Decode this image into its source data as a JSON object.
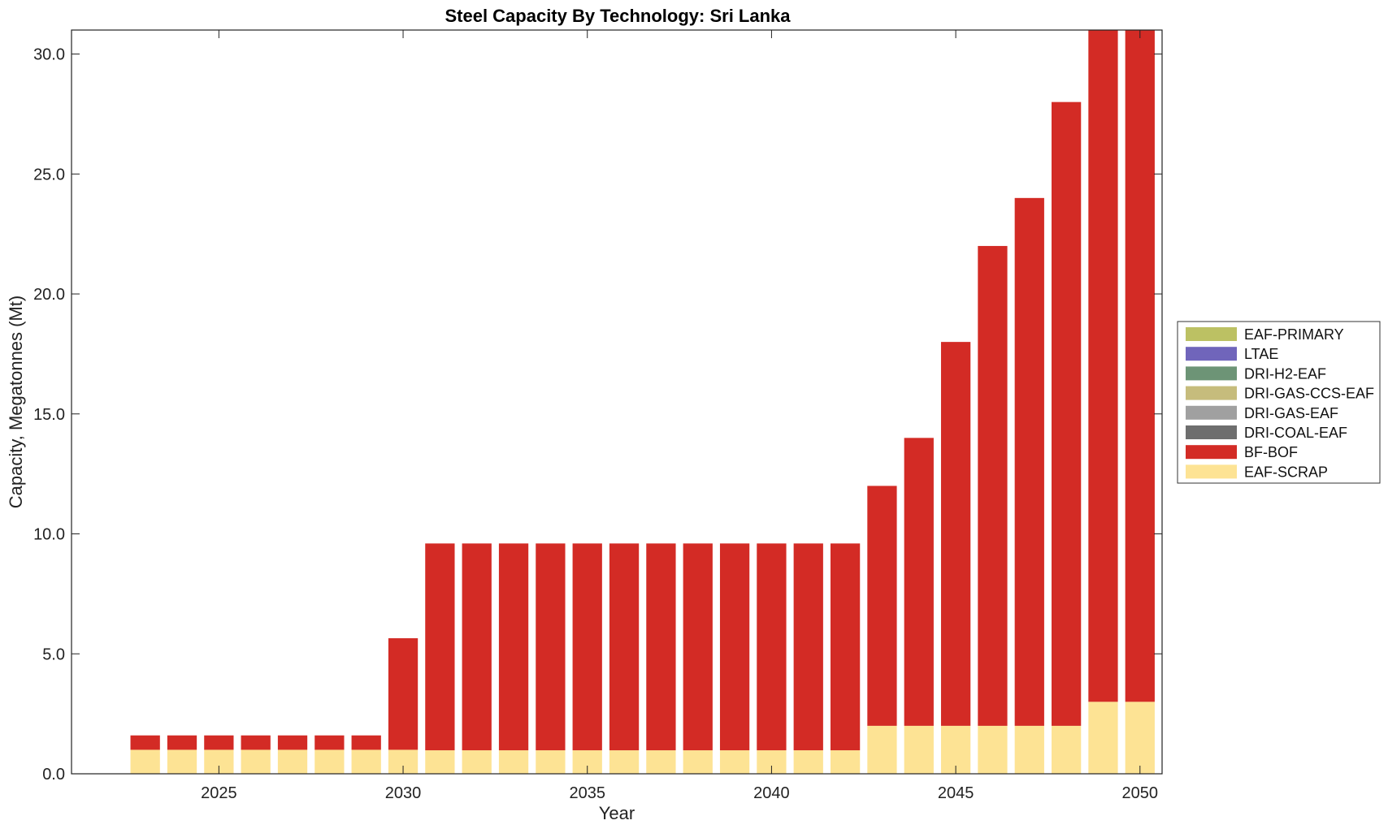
{
  "chart_data": {
    "type": "bar",
    "stacked": true,
    "title": "Steel Capacity By Technology: Sri Lanka",
    "xlabel": "Year",
    "ylabel": "Capacity, Megatonnes (Mt)",
    "xlim": [
      2021.0,
      2050.6
    ],
    "ylim": [
      0,
      31
    ],
    "yticks": [
      0,
      5,
      10,
      15,
      20,
      25,
      30
    ],
    "ytick_labels": [
      "0.0",
      "5.0",
      "10.0",
      "15.0",
      "20.0",
      "25.0",
      "30.0"
    ],
    "xticks": [
      2025,
      2030,
      2035,
      2040,
      2045,
      2050
    ],
    "xtick_labels": [
      "2025",
      "2030",
      "2035",
      "2040",
      "2045",
      "2050"
    ],
    "grid": false,
    "legend_position": "right",
    "categories": [
      2023,
      2024,
      2025,
      2026,
      2027,
      2028,
      2029,
      2030,
      2031,
      2032,
      2033,
      2034,
      2035,
      2036,
      2037,
      2038,
      2039,
      2040,
      2041,
      2042,
      2043,
      2044,
      2045,
      2046,
      2047,
      2048,
      2049,
      2050
    ],
    "series": [
      {
        "name": "EAF-SCRAP",
        "color": "#fde394",
        "values": [
          1.0,
          1.0,
          1.0,
          1.0,
          1.0,
          1.0,
          1.0,
          1.0,
          0.98,
          0.98,
          0.98,
          0.98,
          0.98,
          0.98,
          0.98,
          0.98,
          0.98,
          0.98,
          0.98,
          0.98,
          2.0,
          2.0,
          2.0,
          2.0,
          2.0,
          2.0,
          3.0,
          3.0
        ]
      },
      {
        "name": "BF-BOF",
        "color": "#d32b25",
        "values": [
          0.6,
          0.6,
          0.6,
          0.6,
          0.6,
          0.6,
          0.6,
          4.65,
          8.62,
          8.62,
          8.62,
          8.62,
          8.62,
          8.62,
          8.62,
          8.62,
          8.62,
          8.62,
          8.62,
          8.62,
          10.0,
          12.0,
          16.0,
          20.0,
          22.0,
          26.0,
          28.0,
          28.0
        ]
      },
      {
        "name": "DRI-COAL-EAF",
        "color": "#6e6e6e",
        "values": [
          0,
          0,
          0,
          0,
          0,
          0,
          0,
          0,
          0,
          0,
          0,
          0,
          0,
          0,
          0,
          0,
          0,
          0,
          0,
          0,
          0,
          0,
          0,
          0,
          0,
          0,
          0,
          0
        ]
      },
      {
        "name": "DRI-GAS-EAF",
        "color": "#a0a0a0",
        "values": [
          0,
          0,
          0,
          0,
          0,
          0,
          0,
          0,
          0,
          0,
          0,
          0,
          0,
          0,
          0,
          0,
          0,
          0,
          0,
          0,
          0,
          0,
          0,
          0,
          0,
          0,
          0,
          0
        ]
      },
      {
        "name": "DRI-GAS-CCS-EAF",
        "color": "#c6bc7c",
        "values": [
          0,
          0,
          0,
          0,
          0,
          0,
          0,
          0,
          0,
          0,
          0,
          0,
          0,
          0,
          0,
          0,
          0,
          0,
          0,
          0,
          0,
          0,
          0,
          0,
          0,
          0,
          0,
          0
        ]
      },
      {
        "name": "DRI-H2-EAF",
        "color": "#6d9476",
        "values": [
          0,
          0,
          0,
          0,
          0,
          0,
          0,
          0,
          0,
          0,
          0,
          0,
          0,
          0,
          0,
          0,
          0,
          0,
          0,
          0,
          0,
          0,
          0,
          0,
          0,
          0,
          0,
          0
        ]
      },
      {
        "name": "LTAE",
        "color": "#7065bb",
        "values": [
          0,
          0,
          0,
          0,
          0,
          0,
          0,
          0,
          0,
          0,
          0,
          0,
          0,
          0,
          0,
          0,
          0,
          0,
          0,
          0,
          0,
          0,
          0,
          0,
          0,
          0,
          0,
          0
        ]
      },
      {
        "name": "EAF-PRIMARY",
        "color": "#bcc163",
        "values": [
          0,
          0,
          0,
          0,
          0,
          0,
          0,
          0,
          0,
          0,
          0,
          0,
          0,
          0,
          0,
          0,
          0,
          0,
          0,
          0,
          0,
          0,
          0,
          0,
          0,
          0,
          0,
          0
        ]
      }
    ],
    "legend_order": [
      "EAF-PRIMARY",
      "LTAE",
      "DRI-H2-EAF",
      "DRI-GAS-CCS-EAF",
      "DRI-GAS-EAF",
      "DRI-COAL-EAF",
      "BF-BOF",
      "EAF-SCRAP"
    ]
  }
}
